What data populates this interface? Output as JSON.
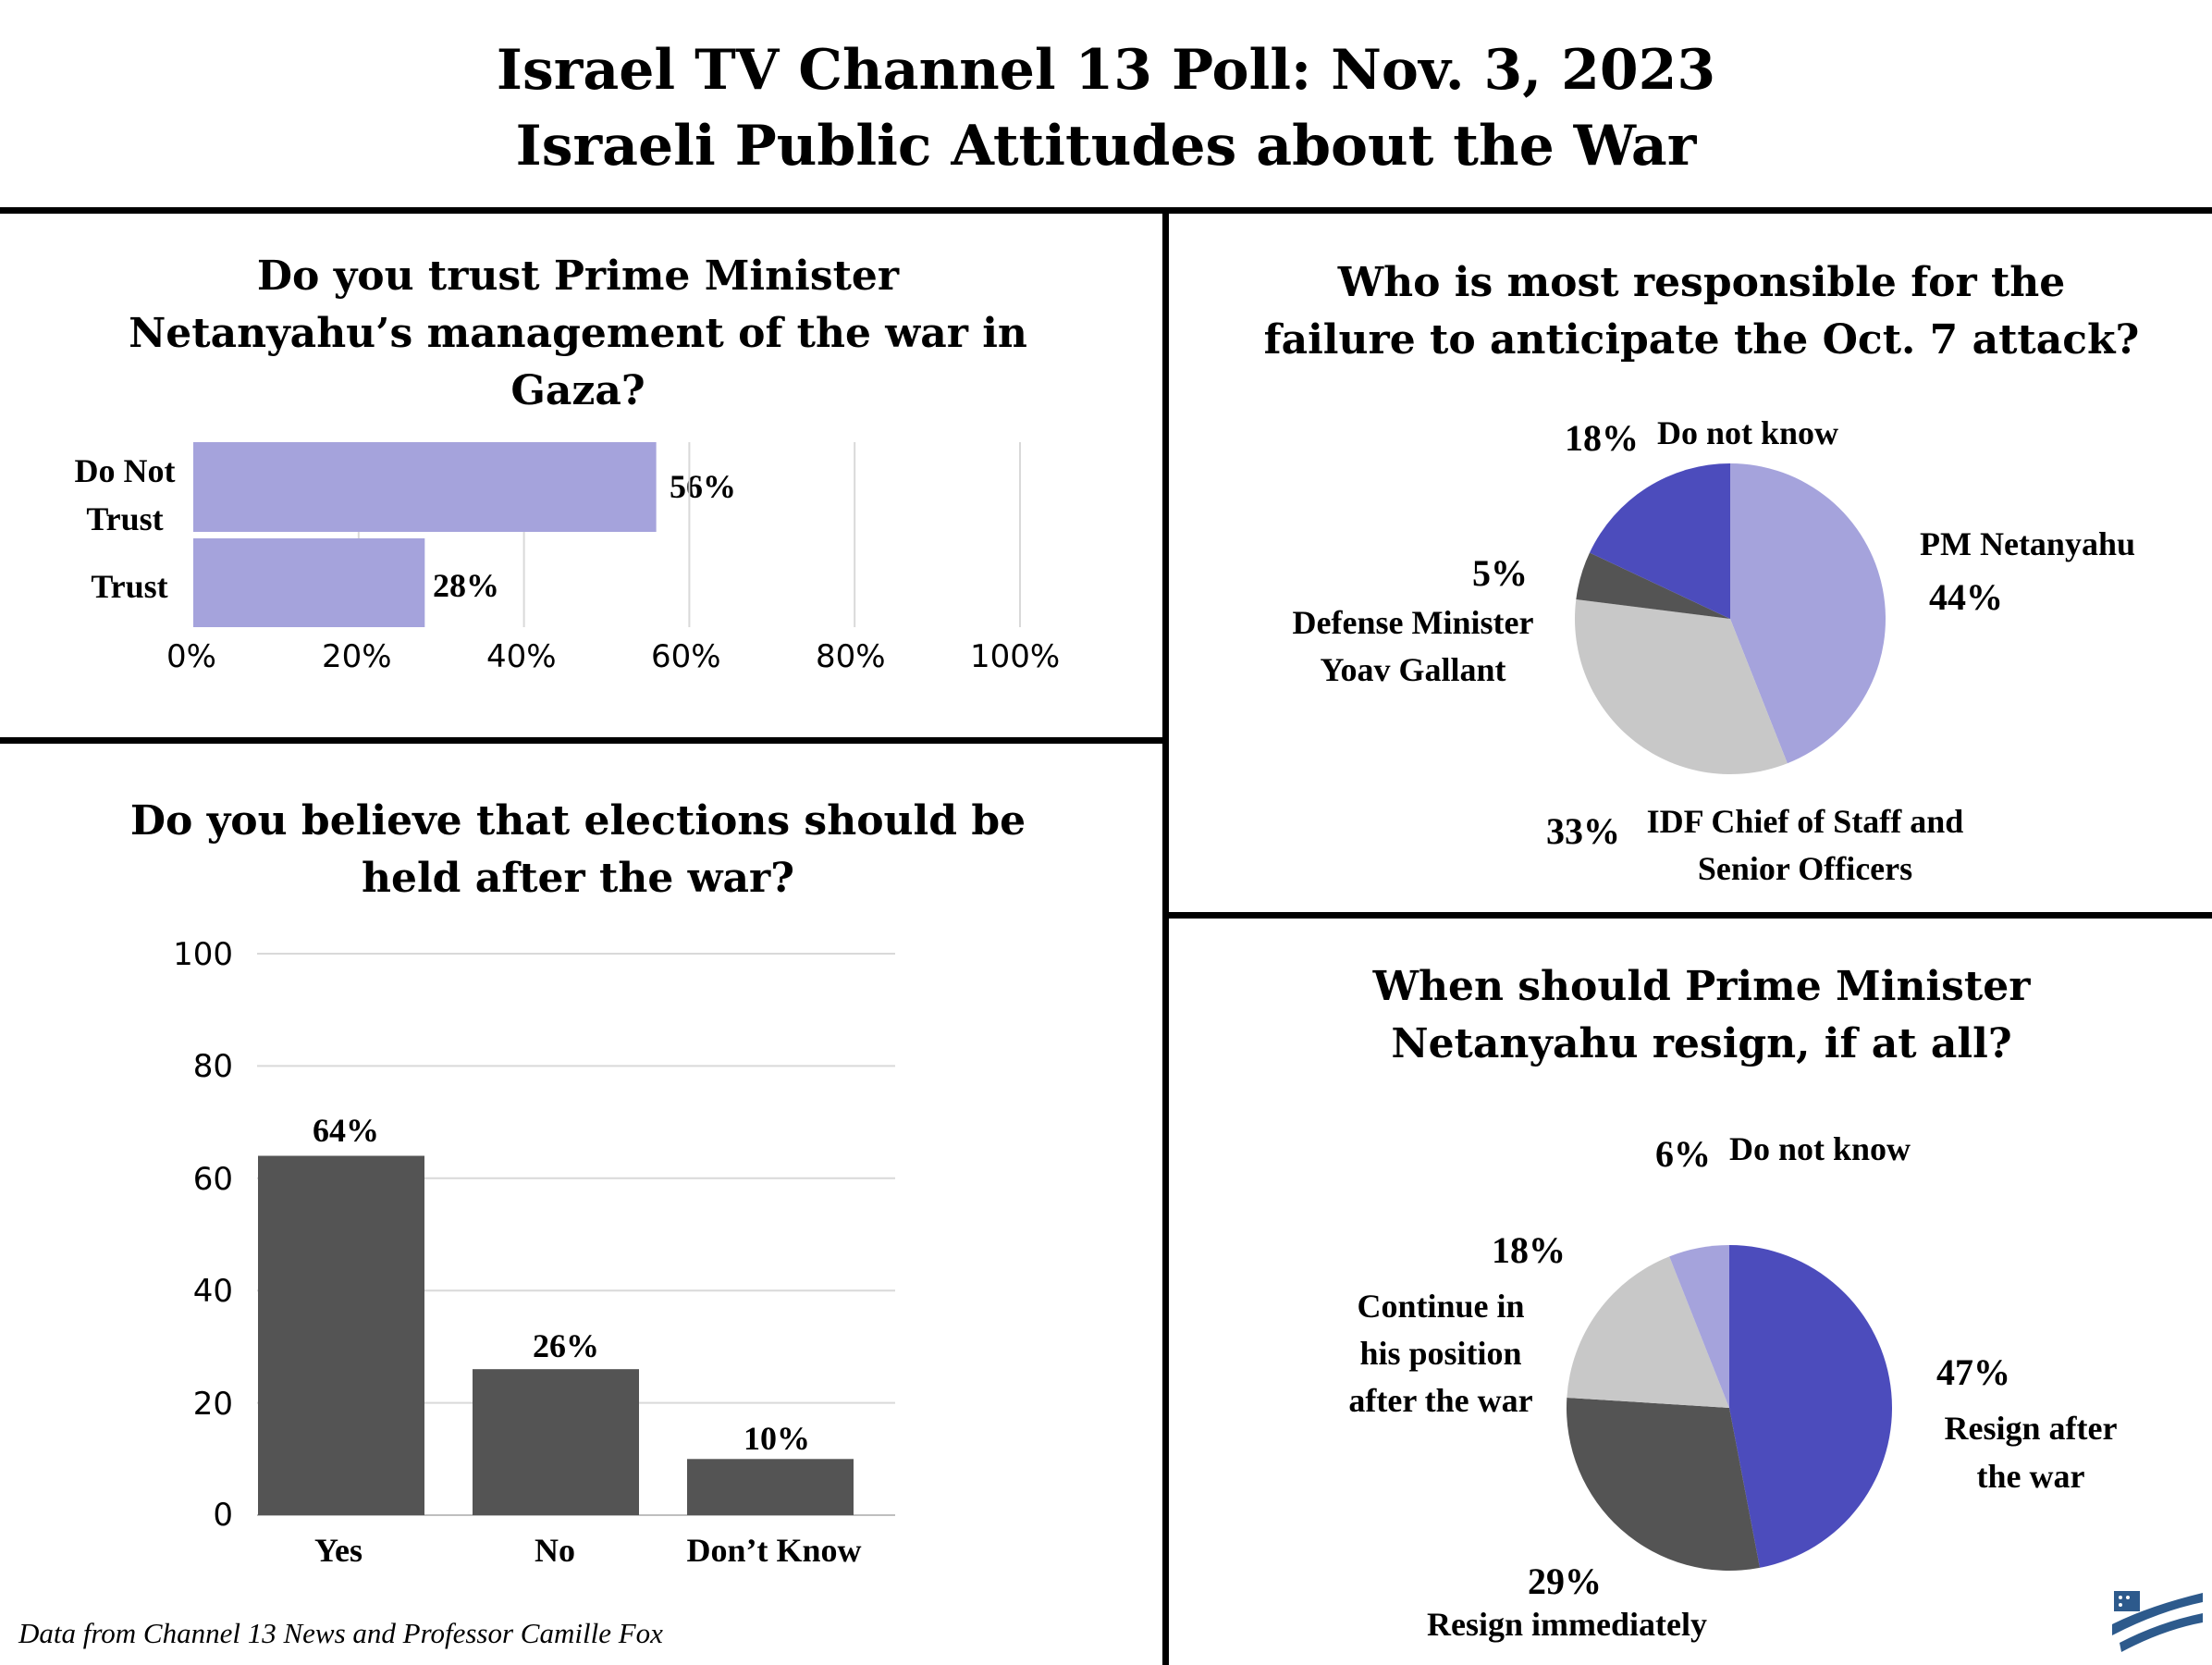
{
  "title": {
    "line1": "Israel TV Channel 13 Poll: Nov. 3, 2023",
    "line2": "Israeli Public Attitudes about the War"
  },
  "footer": "Data from Channel 13 News and Professor Camille Fox",
  "colors": {
    "lavender": "#a5a3dc",
    "indigo": "#4c4cbc",
    "dark_gray": "#545454",
    "light_gray": "#c8c8c8",
    "grid": "#d9d9d9"
  },
  "chart_data": [
    {
      "type": "bar",
      "orientation": "horizontal",
      "title": "Do you trust Prime Minister Netanyahu’s management of the war in Gaza?",
      "title_lines": [
        "Do you trust Prime Minister",
        "Netanyahu’s management of the war in",
        "Gaza?"
      ],
      "categories": [
        "Do Not Trust",
        "Trust"
      ],
      "category_lines": [
        [
          "Do Not",
          "Trust"
        ],
        [
          "Trust"
        ]
      ],
      "values": [
        56,
        28
      ],
      "data_labels": [
        "56%",
        "28%"
      ],
      "xlim": [
        0,
        100
      ],
      "xticks": [
        "0%",
        "20%",
        "40%",
        "60%",
        "80%",
        "100%"
      ],
      "grid": true,
      "color": "#a5a3dc"
    },
    {
      "type": "bar",
      "title": "Do you believe that elections should be held after the war?",
      "title_lines": [
        "Do you believe that elections should be",
        "held after the war?"
      ],
      "categories": [
        "Yes",
        "No",
        "Don’t Know"
      ],
      "values": [
        64,
        26,
        10
      ],
      "data_labels": [
        "64%",
        "26%",
        "10%"
      ],
      "ylim": [
        0,
        100
      ],
      "yticks": [
        "0",
        "20",
        "40",
        "60",
        "80",
        "100"
      ],
      "grid": true,
      "color": "#545454"
    },
    {
      "type": "pie",
      "title": "Who is most responsible for the failure to anticipate the Oct. 7 attack?",
      "title_lines": [
        "Who is most responsible for the",
        "failure to anticipate the Oct. 7 attack?"
      ],
      "slices": [
        {
          "label": "PM Netanyahu",
          "label_lines": [
            "PM Netanyahu"
          ],
          "value": 44,
          "pct": "44%",
          "color": "#a5a3dc"
        },
        {
          "label": "IDF Chief of Staff and Senior Officers",
          "label_lines": [
            "IDF Chief of Staff and",
            "Senior Officers"
          ],
          "value": 33,
          "pct": "33%",
          "color": "#c8c8c8"
        },
        {
          "label": "Defense Minister Yoav Gallant",
          "label_lines": [
            "Defense Minister",
            "Yoav Gallant"
          ],
          "value": 5,
          "pct": "5%",
          "color": "#545454"
        },
        {
          "label": "Do not know",
          "label_lines": [
            "Do not know"
          ],
          "value": 18,
          "pct": "18%",
          "color": "#4c4cbc"
        }
      ]
    },
    {
      "type": "pie",
      "title": "When should Prime Minister Netanyahu resign, if at all?",
      "title_lines": [
        "When should Prime Minister",
        "Netanyahu resign, if at all?"
      ],
      "slices": [
        {
          "label": "Resign after the war",
          "label_lines": [
            "Resign after",
            "the war"
          ],
          "value": 47,
          "pct": "47%",
          "color": "#4c4cbc"
        },
        {
          "label": "Resign immediately",
          "label_lines": [
            "Resign immediately"
          ],
          "value": 29,
          "pct": "29%",
          "color": "#545454"
        },
        {
          "label": "Continue in his position after the war",
          "label_lines": [
            "Continue in",
            "his position",
            "after the war"
          ],
          "value": 18,
          "pct": "18%",
          "color": "#c8c8c8"
        },
        {
          "label": "Do not know",
          "label_lines": [
            "Do not know"
          ],
          "value": 6,
          "pct": "6%",
          "color": "#a5a3dc"
        }
      ]
    }
  ]
}
